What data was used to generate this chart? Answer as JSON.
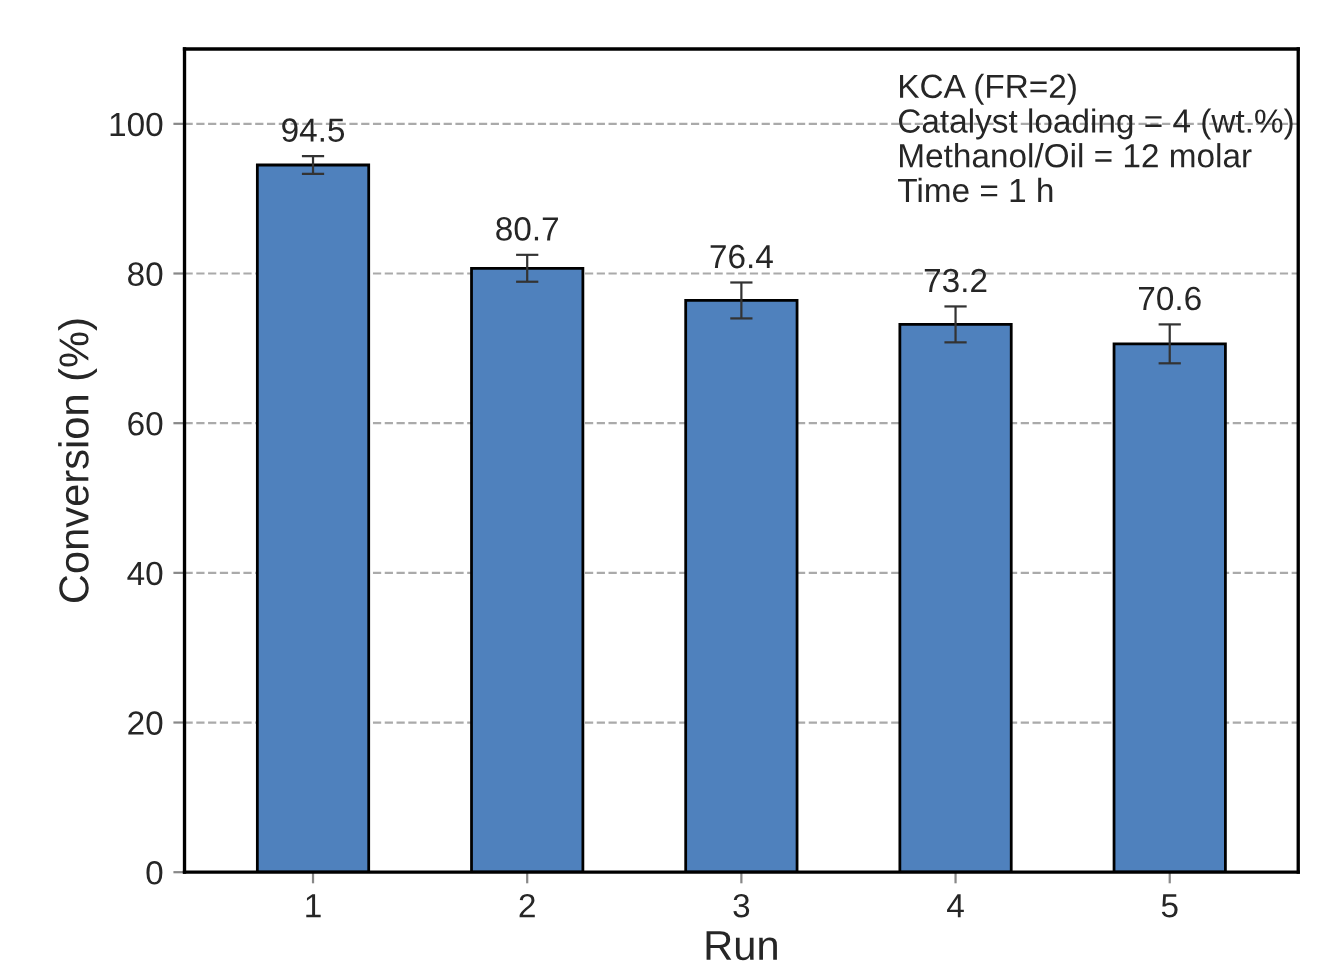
{
  "chart_data": {
    "type": "bar",
    "xlabel": "Run",
    "ylabel": "Conversion (%)",
    "categories": [
      "1",
      "2",
      "3",
      "4",
      "5"
    ],
    "values": [
      94.5,
      80.7,
      76.4,
      73.2,
      70.6
    ],
    "errors": [
      1.2,
      1.8,
      2.4,
      2.4,
      2.6
    ],
    "color": "#4f81bd",
    "data_labels": true,
    "ylim": [
      0,
      110
    ],
    "yticks": [
      0,
      20,
      40,
      60,
      80,
      100
    ],
    "grid": "y",
    "annotations": [
      "KCA (FR=2)\nCatalyst loading = 4 (wt.%)\nMethanol/Oil = 12 molar\nTime = 1 h"
    ]
  }
}
